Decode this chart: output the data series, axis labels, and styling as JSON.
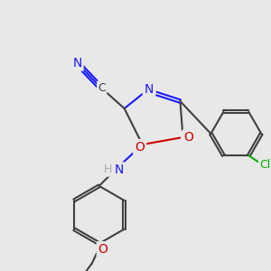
{
  "background_color": "#e8e8e8",
  "bond_color": "#404040",
  "bond_lw": 1.5,
  "atom_colors": {
    "N": "#1a1aff",
    "O": "#cc0000",
    "Cl": "#00aa00",
    "C": "#404040",
    "H": "#888888"
  },
  "font_size": 9,
  "figsize": [
    3.0,
    3.0
  ],
  "dpi": 100
}
